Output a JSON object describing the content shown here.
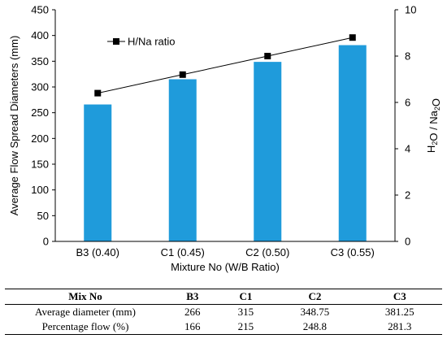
{
  "chart_data": {
    "type": "bar",
    "categories": [
      "B3 (0.40)",
      "C1 (0.45)",
      "C2 (0.50)",
      "C3 (0.55)"
    ],
    "series": [
      {
        "values": [
          266,
          315,
          348.75,
          381.25
        ],
        "axis": "left",
        "kind": "bar",
        "color": "#1F9BDB"
      },
      {
        "name": "H/Na ratio",
        "values": [
          6.4,
          7.2,
          8.0,
          8.8
        ],
        "axis": "right",
        "kind": "line-marker",
        "color": "#000000"
      }
    ],
    "xlabel": "Mixture No (W/B Ratio)",
    "ylabel": "Average Flow Spread Diameters (mm)",
    "y2label": "H2O / Na2O",
    "ylim": [
      0,
      450
    ],
    "y2lim": [
      0,
      10
    ],
    "yticks": [
      "0",
      "50",
      "100",
      "150",
      "200",
      "250",
      "300",
      "350",
      "400",
      "450"
    ],
    "y2ticks": [
      "0",
      "2",
      "4",
      "6",
      "8",
      "10"
    ],
    "legend": "top-left",
    "grid": false
  },
  "table": {
    "headers": [
      "Mix No",
      "B3",
      "C1",
      "C2",
      "C3"
    ],
    "rows": [
      [
        "Average diameter (mm)",
        "266",
        "315",
        "348.75",
        "381.25"
      ],
      [
        "Percentage flow (%)",
        "166",
        "215",
        "248.8",
        "281.3"
      ]
    ]
  }
}
